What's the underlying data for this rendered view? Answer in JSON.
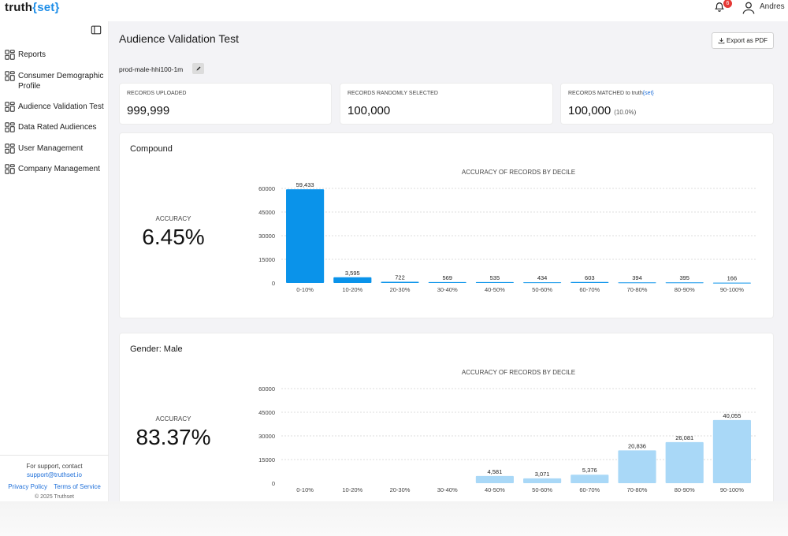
{
  "app": {
    "logo_prefix": "truth",
    "logo_open": "{",
    "logo_mid": "set",
    "logo_close": "}",
    "notifications_count": "6",
    "user_name": "Andres"
  },
  "sidebar": {
    "items": [
      {
        "label": "Reports",
        "icon": "dashboard-icon"
      },
      {
        "label": "Consumer Demographic Profile",
        "icon": "dashboard-icon"
      },
      {
        "label": "Audience Validation Test",
        "icon": "dashboard-icon"
      },
      {
        "label": "Data Rated Audiences",
        "icon": "dashboard-icon"
      },
      {
        "label": "User Management",
        "icon": "dashboard-icon"
      },
      {
        "label": "Company Management",
        "icon": "dashboard-icon"
      }
    ],
    "support_text": "For support, contact",
    "support_email": "support@truthset.io",
    "privacy_label": "Privacy Policy",
    "terms_label": "Terms of Service",
    "copyright": "© 2025 Truthset"
  },
  "main": {
    "title": "Audience Validation Test",
    "export_label": "Export as PDF",
    "file_name": "prod-male-hhi100-1m",
    "stats": [
      {
        "label": "RECORDS UPLOADED",
        "value": "999,999"
      },
      {
        "label": "RECORDS RANDOMLY SELECTED",
        "value": "100,000"
      },
      {
        "label_prefix": "RECORDS MATCHED to truth",
        "label_open": "{",
        "label_mid": "set",
        "label_close": "}",
        "value": "100,000",
        "pct": "(10.0%)"
      }
    ],
    "cards": [
      {
        "title": "Compound",
        "accuracy_label": "ACCURACY",
        "accuracy_value": "6.45%"
      },
      {
        "title": "Gender: Male",
        "accuracy_label": "ACCURACY",
        "accuracy_value": "83.37%"
      }
    ]
  },
  "chart_data": [
    {
      "type": "bar",
      "title": "ACCURACY OF RECORDS BY DECILE",
      "categories": [
        "0-10%",
        "10-20%",
        "20-30%",
        "30-40%",
        "40-50%",
        "50-60%",
        "60-70%",
        "70-80%",
        "80-90%",
        "90-100%"
      ],
      "values": [
        59433,
        3595,
        722,
        569,
        535,
        434,
        603,
        394,
        395,
        166
      ],
      "value_labels": [
        "59,433",
        "3,595",
        "722",
        "569",
        "535",
        "434",
        "603",
        "394",
        "395",
        "166"
      ],
      "yticks": [
        0,
        15000,
        30000,
        45000,
        60000
      ],
      "ylim": [
        0,
        60000
      ],
      "color": "#0a93ea",
      "grid": true
    },
    {
      "type": "bar",
      "title": "ACCURACY OF RECORDS BY DECILE",
      "categories": [
        "0-10%",
        "10-20%",
        "20-30%",
        "30-40%",
        "40-50%",
        "50-60%",
        "60-70%",
        "70-80%",
        "80-90%",
        "90-100%"
      ],
      "values": [
        0,
        0,
        0,
        0,
        4581,
        3071,
        5376,
        20836,
        26081,
        40055
      ],
      "value_labels": [
        "",
        "",
        "",
        "",
        "4,581",
        "3,071",
        "5,376",
        "20,836",
        "26,081",
        "40,055"
      ],
      "yticks": [
        0,
        15000,
        30000,
        45000,
        60000
      ],
      "ylim": [
        0,
        60000
      ],
      "color": "#a9d8f7",
      "grid": true
    }
  ]
}
